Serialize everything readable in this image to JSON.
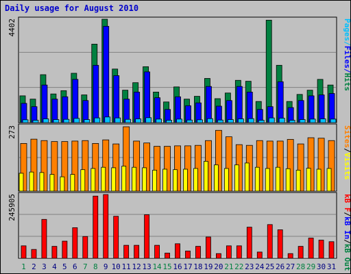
{
  "title": "Daily usage for August 2010",
  "colors": {
    "hits": "#008040",
    "files": "#0000ff",
    "pages": "#00c0ff",
    "visits": "#ffff00",
    "sites": "#ff8000",
    "kbin": "#ff0000",
    "panel_bg": "#c0c0c0",
    "weekend_label": "#008040",
    "weekday_label": "#000080"
  },
  "chart_data": [
    {
      "type": "bar",
      "max_label": "4402",
      "ylim": [
        0,
        4402
      ],
      "legend": [
        {
          "text": "Pages",
          "color": "#00c0ff"
        },
        {
          "text": "Files",
          "color": "#0000ff"
        },
        {
          "text": "Hits",
          "color": "#008040"
        }
      ],
      "categories": [
        "1",
        "2",
        "3",
        "4",
        "5",
        "6",
        "7",
        "8",
        "9",
        "10",
        "11",
        "12",
        "13",
        "14",
        "15",
        "16",
        "17",
        "18",
        "19",
        "20",
        "21",
        "22",
        "23",
        "24",
        "25",
        "26",
        "27",
        "28",
        "29",
        "30",
        "31"
      ],
      "series": [
        {
          "name": "Hits",
          "values": [
            1140,
            1000,
            2040,
            1220,
            1360,
            2100,
            1180,
            3340,
            4402,
            2280,
            1380,
            1700,
            2380,
            1300,
            880,
            1520,
            1000,
            1120,
            1880,
            1020,
            1260,
            1800,
            1760,
            900,
            4360,
            2440,
            900,
            1200,
            1380,
            1840,
            1600
          ]
        },
        {
          "name": "Files",
          "values": [
            820,
            680,
            1600,
            1000,
            1100,
            1840,
            940,
            2440,
            4100,
            2000,
            1000,
            1300,
            2160,
            1060,
            560,
            1100,
            720,
            840,
            1540,
            700,
            940,
            1540,
            1300,
            560,
            680,
            1740,
            640,
            940,
            1140,
            1180,
            1240
          ]
        },
        {
          "name": "Pages",
          "values": [
            120,
            100,
            160,
            130,
            140,
            180,
            130,
            200,
            240,
            200,
            140,
            160,
            210,
            150,
            100,
            150,
            110,
            120,
            170,
            110,
            130,
            160,
            170,
            100,
            200,
            190,
            100,
            130,
            150,
            160,
            150
          ]
        }
      ]
    },
    {
      "type": "bar",
      "max_label": "273",
      "ylim": [
        0,
        273
      ],
      "legend": [
        {
          "text": "Sites",
          "color": "#ff8000"
        },
        {
          "text": "/",
          "color": "#000000"
        },
        {
          "text": "Visits",
          "color": "#ffff00"
        }
      ],
      "categories": [
        "1",
        "2",
        "3",
        "4",
        "5",
        "6",
        "7",
        "8",
        "9",
        "10",
        "11",
        "12",
        "13",
        "14",
        "15",
        "16",
        "17",
        "18",
        "19",
        "20",
        "21",
        "22",
        "23",
        "24",
        "25",
        "26",
        "27",
        "28",
        "29",
        "30",
        "31"
      ],
      "series": [
        {
          "name": "Sites",
          "values": [
            200,
            218,
            212,
            208,
            208,
            210,
            212,
            200,
            215,
            198,
            270,
            210,
            202,
            188,
            188,
            190,
            190,
            192,
            212,
            255,
            228,
            195,
            192,
            212,
            210,
            210,
            217,
            198,
            224,
            222,
            212
          ]
        },
        {
          "name": "Visits",
          "values": [
            75,
            80,
            78,
            70,
            60,
            70,
            90,
            95,
            100,
            98,
            105,
            100,
            98,
            88,
            92,
            90,
            92,
            95,
            125,
            110,
            95,
            110,
            118,
            100,
            95,
            100,
            94,
            88,
            96,
            92,
            95
          ]
        }
      ]
    },
    {
      "type": "bar",
      "max_label": "245905",
      "ylim": [
        0,
        245905
      ],
      "legend": [
        {
          "text": "kB F",
          "color": "#ff0000"
        },
        {
          "text": "/",
          "color": "#000000"
        },
        {
          "text": "kB In",
          "color": "#0000ff"
        },
        {
          "text": "/",
          "color": "#000000"
        },
        {
          "text": "kB Out",
          "color": "#008040"
        }
      ],
      "categories": [
        "1",
        "2",
        "3",
        "4",
        "5",
        "6",
        "7",
        "8",
        "9",
        "10",
        "11",
        "12",
        "13",
        "14",
        "15",
        "16",
        "17",
        "18",
        "19",
        "20",
        "21",
        "22",
        "23",
        "24",
        "25",
        "26",
        "27",
        "28",
        "29",
        "30",
        "31"
      ],
      "series": [
        {
          "name": "kB F",
          "values": [
            48000,
            34000,
            150000,
            46000,
            66000,
            118000,
            84000,
            240000,
            245905,
            162000,
            50000,
            50000,
            168000,
            50000,
            20000,
            56000,
            28000,
            46000,
            82000,
            18000,
            48000,
            48000,
            120000,
            24000,
            130000,
            110000,
            18000,
            46000,
            78000,
            70000,
            64000
          ]
        }
      ]
    }
  ],
  "day_labels": [
    {
      "text": "1",
      "weekend": true
    },
    {
      "text": "2",
      "weekend": false
    },
    {
      "text": "3",
      "weekend": false
    },
    {
      "text": "4",
      "weekend": false
    },
    {
      "text": "5",
      "weekend": false
    },
    {
      "text": "6",
      "weekend": false
    },
    {
      "text": "7",
      "weekend": true
    },
    {
      "text": "8",
      "weekend": true
    },
    {
      "text": "9",
      "weekend": false
    },
    {
      "text": "10",
      "weekend": false
    },
    {
      "text": "11",
      "weekend": false
    },
    {
      "text": "12",
      "weekend": false
    },
    {
      "text": "13",
      "weekend": false
    },
    {
      "text": "14",
      "weekend": true
    },
    {
      "text": "15",
      "weekend": true
    },
    {
      "text": "16",
      "weekend": false
    },
    {
      "text": "17",
      "weekend": false
    },
    {
      "text": "18",
      "weekend": false
    },
    {
      "text": "19",
      "weekend": false
    },
    {
      "text": "20",
      "weekend": false
    },
    {
      "text": "21",
      "weekend": true
    },
    {
      "text": "22",
      "weekend": true
    },
    {
      "text": "23",
      "weekend": false
    },
    {
      "text": "24",
      "weekend": false
    },
    {
      "text": "25",
      "weekend": false
    },
    {
      "text": "26",
      "weekend": false
    },
    {
      "text": "27",
      "weekend": false
    },
    {
      "text": "28",
      "weekend": true
    },
    {
      "text": "29",
      "weekend": true
    },
    {
      "text": "30",
      "weekend": false
    },
    {
      "text": "31",
      "weekend": false
    }
  ]
}
